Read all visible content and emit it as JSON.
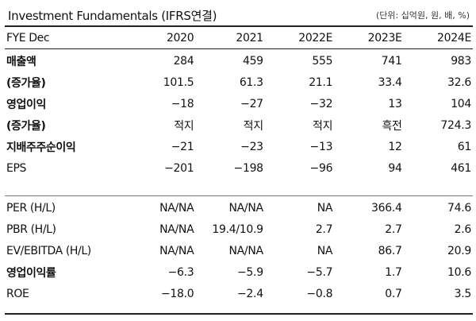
{
  "title": "Investment Fundamentals (IFRS연결)",
  "unit": "(단위: 십억원, 원, 배, %)",
  "header": [
    "FYE Dec",
    "2020",
    "2021",
    "2022E",
    "2023E",
    "2024E"
  ],
  "rows": [
    {
      "label": "매출액",
      "kr": true,
      "values": [
        "284",
        "459",
        "555",
        "741",
        "983"
      ]
    },
    {
      "label": "(증가율)",
      "kr": true,
      "values": [
        "101.5",
        "61.3",
        "21.1",
        "33.4",
        "32.6"
      ]
    },
    {
      "label": "영업이익",
      "kr": true,
      "values": [
        "−18",
        "−27",
        "−32",
        "13",
        "104"
      ]
    },
    {
      "label": "(증가율)",
      "kr": true,
      "values": [
        "적지",
        "적지",
        "적지",
        "흑전",
        "724.3"
      ]
    },
    {
      "label": "지배주주순이익",
      "kr": true,
      "values": [
        "−21",
        "−23",
        "−13",
        "12",
        "61"
      ]
    },
    {
      "label": "EPS",
      "kr": false,
      "values": [
        "−201",
        "−198",
        "−96",
        "94",
        "461"
      ]
    },
    {
      "label": "PER (H/L)",
      "kr": false,
      "values": [
        "NA/NA",
        "NA/NA",
        "NA",
        "366.4",
        "74.6"
      ]
    },
    {
      "label": "PBR (H/L)",
      "kr": false,
      "values": [
        "NA/NA",
        "19.4/10.9",
        "2.7",
        "2.7",
        "2.6"
      ]
    },
    {
      "label": "EV/EBITDA (H/L)",
      "kr": false,
      "values": [
        "NA/NA",
        "NA/NA",
        "NA",
        "86.7",
        "20.9"
      ]
    },
    {
      "label": "영업이익률",
      "kr": true,
      "values": [
        "−6.3",
        "−5.9",
        "−5.7",
        "1.7",
        "10.6"
      ]
    },
    {
      "label": "ROE",
      "kr": false,
      "values": [
        "−18.0",
        "−2.4",
        "−0.8",
        "0.7",
        "3.5"
      ]
    }
  ]
}
